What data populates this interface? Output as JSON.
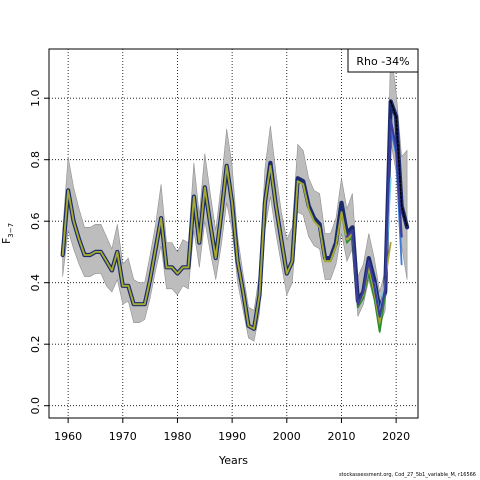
{
  "chart_data": {
    "type": "line",
    "title": "",
    "xlabel": "Years",
    "ylabel_main": "F",
    "ylabel_sub": "3−7",
    "xlim": [
      1956.5,
      2024
    ],
    "ylim": [
      -0.04,
      1.16
    ],
    "x_ticks": [
      1960,
      1970,
      1980,
      1990,
      2000,
      2010,
      2020
    ],
    "y_ticks": [
      0.0,
      0.2,
      0.4,
      0.6,
      0.8,
      1.0
    ],
    "y_tick_labels": [
      "0.0",
      "0.2",
      "0.4",
      "0.6",
      "0.8",
      "1.0"
    ],
    "grid": true,
    "legend_text": "Rho -34%",
    "legend_position": "top-right",
    "colors": {
      "band": "#bdbdbd",
      "band_edge": "#8f8f8f",
      "base": "#1a2a6e",
      "retro_olive": "#a8a832",
      "retro_green": "#2e8b2e",
      "retro_light_blue": "#6ec8e8",
      "retro_mid_blue": "#3a7ad8",
      "retro_navy": "#3c3c9c",
      "dotted": "#000000"
    },
    "band": {
      "x": [
        1959,
        1960,
        1961,
        1962,
        1963,
        1964,
        1965,
        1966,
        1967,
        1968,
        1969,
        1970,
        1971,
        1972,
        1973,
        1974,
        1975,
        1976,
        1977,
        1978,
        1979,
        1980,
        1981,
        1982,
        1983,
        1984,
        1985,
        1986,
        1987,
        1988,
        1989,
        1990,
        1991,
        1992,
        1993,
        1994,
        1995,
        1996,
        1997,
        1998,
        1999,
        2000,
        2001,
        2002,
        2003,
        2004,
        2005,
        2006,
        2007,
        2008,
        2009,
        2010,
        2011,
        2012,
        2013,
        2014,
        2015,
        2016,
        2017,
        2018,
        2019,
        2020,
        2021,
        2022
      ],
      "upper": [
        0.57,
        0.81,
        0.71,
        0.64,
        0.58,
        0.58,
        0.59,
        0.59,
        0.55,
        0.51,
        0.59,
        0.46,
        0.48,
        0.41,
        0.4,
        0.4,
        0.49,
        0.59,
        0.72,
        0.53,
        0.53,
        0.5,
        0.54,
        0.53,
        0.79,
        0.62,
        0.82,
        0.69,
        0.57,
        0.72,
        0.9,
        0.78,
        0.55,
        0.43,
        0.32,
        0.31,
        0.43,
        0.77,
        0.91,
        0.76,
        0.63,
        0.54,
        0.58,
        0.85,
        0.83,
        0.74,
        0.7,
        0.69,
        0.56,
        0.56,
        0.61,
        0.74,
        0.64,
        0.69,
        0.42,
        0.46,
        0.56,
        0.48,
        0.37,
        0.44,
        1.16,
        1.02,
        0.81,
        0.83
      ],
      "lower": [
        0.42,
        0.57,
        0.51,
        0.46,
        0.42,
        0.42,
        0.43,
        0.43,
        0.39,
        0.37,
        0.41,
        0.33,
        0.34,
        0.27,
        0.27,
        0.28,
        0.35,
        0.44,
        0.52,
        0.38,
        0.38,
        0.36,
        0.39,
        0.38,
        0.57,
        0.45,
        0.6,
        0.5,
        0.41,
        0.52,
        0.66,
        0.57,
        0.4,
        0.31,
        0.22,
        0.21,
        0.3,
        0.57,
        0.68,
        0.56,
        0.46,
        0.36,
        0.4,
        0.63,
        0.62,
        0.55,
        0.52,
        0.51,
        0.41,
        0.41,
        0.46,
        0.56,
        0.47,
        0.51,
        0.29,
        0.33,
        0.41,
        0.34,
        0.26,
        0.31,
        0.86,
        0.76,
        0.52,
        0.41
      ]
    },
    "series": [
      {
        "x": [
          1959,
          1960,
          1961,
          1962,
          1963,
          1964,
          1965,
          1966,
          1967,
          1968,
          1969,
          1970,
          1971,
          1972,
          1973,
          1974,
          1975,
          1976,
          1977,
          1978,
          1979,
          1980,
          1981,
          1982,
          1983,
          1984,
          1985,
          1986,
          1987,
          1988,
          1989,
          1990,
          1991,
          1992,
          1993,
          1994,
          1995,
          1996,
          1997,
          1998,
          1999,
          2000,
          2001,
          2002,
          2003,
          2004,
          2005,
          2006,
          2007,
          2008,
          2009,
          2010,
          2011,
          2012,
          2013,
          2014,
          2015,
          2016,
          2017,
          2018,
          2019,
          2020,
          2021,
          2022
        ],
        "values": [
          0.49,
          0.7,
          0.6,
          0.54,
          0.49,
          0.49,
          0.5,
          0.5,
          0.47,
          0.44,
          0.5,
          0.39,
          0.39,
          0.33,
          0.33,
          0.33,
          0.41,
          0.51,
          0.61,
          0.45,
          0.45,
          0.43,
          0.45,
          0.45,
          0.68,
          0.53,
          0.71,
          0.59,
          0.48,
          0.62,
          0.78,
          0.66,
          0.47,
          0.37,
          0.26,
          0.25,
          0.36,
          0.66,
          0.79,
          0.65,
          0.54,
          0.43,
          0.47,
          0.74,
          0.73,
          0.65,
          0.61,
          0.59,
          0.48,
          0.48,
          0.53,
          0.66,
          0.56,
          0.58,
          0.34,
          0.37,
          0.48,
          0.41,
          0.31,
          0.37,
          0.99,
          0.94,
          0.65,
          0.58
        ],
        "style": "base"
      },
      {
        "x": [
          1959,
          1960,
          1961,
          1962,
          1963,
          1964,
          1965,
          1966,
          1967,
          1968,
          1969,
          1970,
          1971,
          1972,
          1973,
          1974,
          1975,
          1976,
          1977,
          1978,
          1979,
          1980,
          1981,
          1982,
          1983,
          1984,
          1985,
          1986,
          1987,
          1988,
          1989,
          1990,
          1991,
          1992,
          1993,
          1994,
          1995,
          1996,
          1997,
          1998,
          1999,
          2000,
          2001,
          2002,
          2003,
          2004,
          2005,
          2006,
          2007,
          2008,
          2009,
          2010,
          2011,
          2012,
          2013,
          2014,
          2015,
          2016,
          2017,
          2018
        ],
        "values": [
          0.49,
          0.7,
          0.6,
          0.54,
          0.49,
          0.49,
          0.5,
          0.5,
          0.47,
          0.44,
          0.5,
          0.39,
          0.39,
          0.33,
          0.33,
          0.33,
          0.41,
          0.51,
          0.61,
          0.45,
          0.45,
          0.43,
          0.45,
          0.45,
          0.68,
          0.53,
          0.71,
          0.59,
          0.48,
          0.62,
          0.78,
          0.66,
          0.47,
          0.37,
          0.26,
          0.25,
          0.36,
          0.66,
          0.78,
          0.65,
          0.54,
          0.43,
          0.47,
          0.73,
          0.72,
          0.64,
          0.6,
          0.58,
          0.47,
          0.47,
          0.52,
          0.63,
          0.53,
          0.55,
          0.32,
          0.35,
          0.43,
          0.35,
          0.24,
          0.36
        ],
        "style": "retro_green"
      },
      {
        "x": [
          1959,
          1960,
          1961,
          1962,
          1963,
          1964,
          1965,
          1966,
          1967,
          1968,
          1969,
          1970,
          1971,
          1972,
          1973,
          1974,
          1975,
          1976,
          1977,
          1978,
          1979,
          1980,
          1981,
          1982,
          1983,
          1984,
          1985,
          1986,
          1987,
          1988,
          1989,
          1990,
          1991,
          1992,
          1993,
          1994,
          1995,
          1996,
          1997,
          1998,
          1999,
          2000,
          2001,
          2002,
          2003,
          2004,
          2005,
          2006,
          2007,
          2008,
          2009,
          2010,
          2011,
          2012,
          2013,
          2014,
          2015,
          2016,
          2017,
          2018,
          2019
        ],
        "values": [
          0.49,
          0.7,
          0.6,
          0.54,
          0.49,
          0.49,
          0.5,
          0.5,
          0.47,
          0.44,
          0.5,
          0.39,
          0.39,
          0.33,
          0.33,
          0.33,
          0.41,
          0.51,
          0.61,
          0.45,
          0.45,
          0.43,
          0.45,
          0.45,
          0.68,
          0.53,
          0.71,
          0.59,
          0.48,
          0.62,
          0.78,
          0.66,
          0.47,
          0.37,
          0.26,
          0.25,
          0.36,
          0.66,
          0.78,
          0.65,
          0.54,
          0.43,
          0.47,
          0.73,
          0.72,
          0.64,
          0.6,
          0.58,
          0.47,
          0.47,
          0.52,
          0.63,
          0.54,
          0.56,
          0.33,
          0.36,
          0.45,
          0.37,
          0.27,
          0.41,
          0.53
        ],
        "style": "retro_olive"
      },
      {
        "x": [
          2016,
          2017,
          2018,
          2019
        ],
        "values": [
          0.4,
          0.3,
          0.4,
          0.74
        ],
        "style": "retro_light_blue"
      },
      {
        "x": [
          2019,
          2020,
          2021
        ],
        "values": [
          0.9,
          0.82,
          0.46
        ],
        "style": "retro_mid_blue"
      },
      {
        "x": [
          2011,
          2012,
          2013,
          2014,
          2015,
          2016,
          2017,
          2018,
          2019,
          2020,
          2021
        ],
        "values": [
          0.55,
          0.57,
          0.33,
          0.37,
          0.47,
          0.39,
          0.29,
          0.38,
          0.93,
          0.84,
          0.55
        ],
        "style": "retro_navy"
      },
      {
        "x": [
          2019,
          2020,
          2021,
          2022
        ],
        "values": [
          0.99,
          0.94,
          0.65,
          0.58
        ],
        "style": "dotted"
      }
    ]
  },
  "caption": "stockassessment.org,  Cod_27_5b1_variable_M, r16566"
}
